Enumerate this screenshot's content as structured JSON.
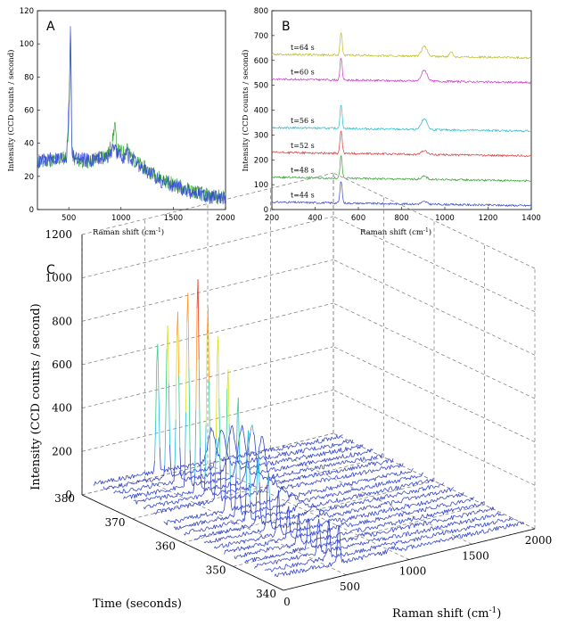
{
  "chart_data": [
    {
      "panel": "A",
      "type": "line",
      "title": "A",
      "xlabel": "Raman shift (cm",
      "xlabel_sup": "-1",
      "xlabel_close": ")",
      "ylabel": "Intensity (CCD counts / second)",
      "xlim": [
        200,
        2000
      ],
      "ylim": [
        0,
        120
      ],
      "xticks": [
        500,
        1000,
        1500,
        2000
      ],
      "yticks": [
        0,
        20,
        40,
        60,
        80,
        100,
        120
      ],
      "series": [
        {
          "name": "green spectrum",
          "color": "#2ca02c",
          "x": [
            200,
            300,
            400,
            480,
            505,
            515,
            530,
            560,
            700,
            880,
            920,
            940,
            960,
            1040,
            1060,
            1080,
            1200,
            1400,
            1600,
            1800,
            2000
          ],
          "y": [
            28,
            30,
            30,
            32,
            60,
            108,
            34,
            30,
            29,
            34,
            42,
            52,
            36,
            34,
            40,
            33,
            26,
            18,
            13,
            9,
            7
          ]
        },
        {
          "name": "blue spectrum",
          "color": "#3344dd",
          "x": [
            200,
            300,
            400,
            480,
            505,
            517,
            530,
            560,
            700,
            880,
            920,
            940,
            960,
            1040,
            1060,
            1080,
            1200,
            1400,
            1600,
            1800,
            2000
          ],
          "y": [
            29,
            30,
            31,
            32,
            70,
            117,
            35,
            31,
            30,
            32,
            36,
            40,
            33,
            32,
            34,
            31,
            25,
            17,
            12,
            8,
            6
          ]
        }
      ]
    },
    {
      "panel": "B",
      "type": "line",
      "title": "B",
      "xlabel": "Raman shift (cm",
      "xlabel_sup": "-1",
      "xlabel_close": ")",
      "ylabel": "Intensity (CCD counts / second)",
      "xlim": [
        200,
        1400
      ],
      "ylim": [
        0,
        800
      ],
      "xticks": [
        200,
        400,
        600,
        800,
        1000,
        1200,
        1400
      ],
      "yticks": [
        0,
        100,
        200,
        300,
        400,
        500,
        600,
        700,
        800
      ],
      "series": [
        {
          "name": "t=44 s",
          "color": "#3344cc",
          "baseline": 30,
          "peak520": 90,
          "peak900": 10,
          "peak1030": 0
        },
        {
          "name": "t=48 s",
          "color": "#2ca02c",
          "baseline": 130,
          "peak520": 90,
          "peak900": 12,
          "peak1030": 0
        },
        {
          "name": "t=52 s",
          "color": "#dd3333",
          "baseline": 230,
          "peak520": 90,
          "peak900": 15,
          "peak1030": 0
        },
        {
          "name": "t=56 s",
          "color": "#22bbcc",
          "baseline": 330,
          "peak520": 95,
          "peak900": 45,
          "peak1030": 0
        },
        {
          "name": "t=60 s",
          "color": "#cc33cc",
          "baseline": 525,
          "peak520": 90,
          "peak900": 45,
          "peak1030": 0
        },
        {
          "name": "t=64 s",
          "color": "#bbbb22",
          "baseline": 625,
          "peak520": 95,
          "peak900": 40,
          "peak1030": 20
        }
      ]
    },
    {
      "panel": "C",
      "type": "line",
      "title": "C",
      "subtype": "waterfall-3d",
      "xlabel": "Raman shift (cm",
      "xlabel_sup": "-1",
      "xlabel_close": ")",
      "ylabel": "Time (seconds)",
      "zlabel": "Intensity (CCD counts / second)",
      "xlim": [
        0,
        2000
      ],
      "ylim": [
        340,
        380
      ],
      "zlim": [
        0,
        1200
      ],
      "xticks": [
        0,
        500,
        1000,
        1500,
        2000
      ],
      "yticks": [
        340,
        350,
        360,
        370,
        380
      ],
      "zticks": [
        0,
        200,
        400,
        600,
        800,
        1000,
        1200
      ],
      "time_traces": [
        342,
        344,
        346,
        348,
        350,
        352,
        354,
        356,
        358,
        360,
        362,
        364,
        366,
        368,
        370,
        372,
        374,
        376,
        378
      ],
      "peak_shift_cm": 520,
      "peak_heights": [
        180,
        170,
        160,
        150,
        140,
        160,
        200,
        260,
        330,
        420,
        540,
        660,
        780,
        880,
        1000,
        900,
        800,
        700,
        600
      ]
    }
  ],
  "labels": {
    "A": "A",
    "B": "B",
    "C": "C"
  }
}
